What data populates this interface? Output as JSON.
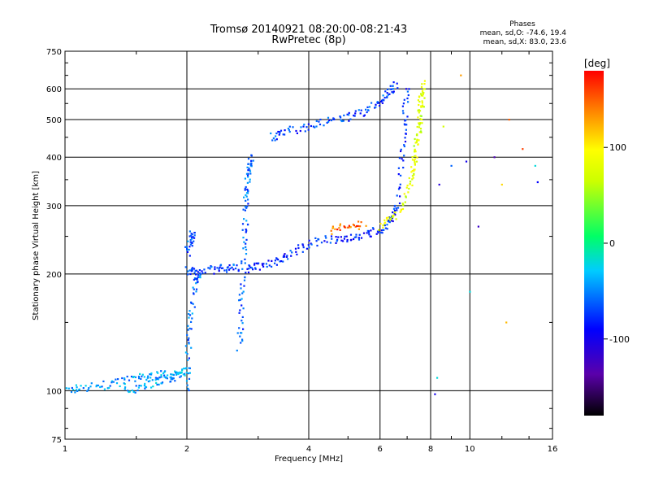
{
  "chart_data": {
    "type": "scatter",
    "title": "Tromsø 20140921 08:20:00-08:21:43",
    "subtitle": "RwPretec (8p)",
    "xlabel": "Frequency [MHz]",
    "ylabel": "Stationary phase Virtual Height [km]",
    "x_scale": "log",
    "y_scale": "log",
    "xlim": [
      1,
      16
    ],
    "ylim": [
      75,
      750
    ],
    "x_ticks": [
      1,
      2,
      4,
      6,
      8,
      10,
      16
    ],
    "y_ticks": [
      75,
      100,
      200,
      300,
      400,
      500,
      600,
      750
    ],
    "grid": true,
    "phases": {
      "title": "Phases",
      "line1": "mean, sd,O: -74.6, 19.4",
      "line2": "mean, sd,X:  83.0, 23.6"
    },
    "colorbar": {
      "label": "[deg]",
      "min": -180,
      "max": 180,
      "ticks": [
        100,
        0,
        -100
      ],
      "colormap": "rainbow"
    },
    "traces": [
      {
        "points": [
          [
            1.0,
            100
          ],
          [
            1.1,
            102
          ],
          [
            1.25,
            103
          ],
          [
            1.4,
            106
          ],
          [
            1.55,
            108
          ],
          [
            1.7,
            110
          ],
          [
            1.85,
            110
          ],
          [
            2.0,
            112
          ]
        ],
        "phase": -45
      },
      {
        "points": [
          [
            1.4,
            100
          ],
          [
            1.55,
            103
          ],
          [
            1.7,
            106
          ],
          [
            1.85,
            108
          ],
          [
            2.0,
            110
          ]
        ],
        "phase": -40
      },
      {
        "points": [
          [
            2.0,
            205
          ],
          [
            2.1,
            203
          ],
          [
            2.3,
            205
          ],
          [
            2.5,
            207
          ],
          [
            2.7,
            208
          ]
        ],
        "phase": -70
      },
      {
        "points": [
          [
            2.0,
            225
          ],
          [
            2.05,
            245
          ],
          [
            2.08,
            260
          ]
        ],
        "phase": -65
      },
      {
        "points": [
          [
            2.0,
            100
          ],
          [
            2.02,
            130
          ],
          [
            2.05,
            160
          ],
          [
            2.1,
            190
          ],
          [
            2.15,
            200
          ]
        ],
        "phase": -55
      },
      {
        "points": [
          [
            2.7,
            130
          ],
          [
            2.72,
            160
          ],
          [
            2.75,
            200
          ],
          [
            2.78,
            250
          ],
          [
            2.8,
            300
          ],
          [
            2.82,
            340
          ],
          [
            2.85,
            380
          ],
          [
            2.9,
            400
          ]
        ],
        "phase": -60
      },
      {
        "points": [
          [
            2.8,
            205
          ],
          [
            3.0,
            210
          ],
          [
            3.3,
            215
          ],
          [
            3.6,
            225
          ],
          [
            4.0,
            240
          ],
          [
            4.5,
            245
          ],
          [
            5.0,
            248
          ],
          [
            5.5,
            252
          ],
          [
            6.0,
            260
          ],
          [
            6.4,
            275
          ],
          [
            6.6,
            300
          ],
          [
            6.8,
            400
          ],
          [
            6.9,
            500
          ],
          [
            7.0,
            620
          ]
        ],
        "phase": -80
      },
      {
        "points": [
          [
            3.2,
            450
          ],
          [
            3.5,
            465
          ],
          [
            4.0,
            480
          ],
          [
            4.5,
            495
          ],
          [
            5.0,
            505
          ],
          [
            5.5,
            525
          ],
          [
            6.0,
            560
          ],
          [
            6.3,
            590
          ],
          [
            6.6,
            620
          ]
        ],
        "phase": -70
      },
      {
        "points": [
          [
            6.0,
            265
          ],
          [
            6.5,
            280
          ],
          [
            7.0,
            320
          ],
          [
            7.3,
            380
          ],
          [
            7.5,
            480
          ],
          [
            7.6,
            560
          ],
          [
            7.7,
            620
          ]
        ],
        "phase": 80
      },
      {
        "points": [
          [
            7.2,
            350
          ],
          [
            7.35,
            420
          ],
          [
            7.5,
            500
          ],
          [
            7.6,
            600
          ]
        ],
        "phase": 70
      },
      {
        "points": [
          [
            4.5,
            260
          ],
          [
            5.0,
            265
          ],
          [
            5.5,
            268
          ]
        ],
        "phase": 150
      }
    ],
    "scattered_points": [
      {
        "x": 8.2,
        "y": 98,
        "phase": -100
      },
      {
        "x": 8.3,
        "y": 108,
        "phase": -20
      },
      {
        "x": 8.4,
        "y": 340,
        "phase": -110
      },
      {
        "x": 8.6,
        "y": 480,
        "phase": 70
      },
      {
        "x": 9.0,
        "y": 380,
        "phase": -60
      },
      {
        "x": 9.5,
        "y": 650,
        "phase": 130
      },
      {
        "x": 9.8,
        "y": 390,
        "phase": -100
      },
      {
        "x": 10.0,
        "y": 180,
        "phase": -20
      },
      {
        "x": 10.5,
        "y": 265,
        "phase": -120
      },
      {
        "x": 11.5,
        "y": 400,
        "phase": -130
      },
      {
        "x": 12.0,
        "y": 340,
        "phase": 110
      },
      {
        "x": 12.3,
        "y": 150,
        "phase": 120
      },
      {
        "x": 12.5,
        "y": 500,
        "phase": 150
      },
      {
        "x": 13.5,
        "y": 420,
        "phase": 160
      },
      {
        "x": 14.5,
        "y": 380,
        "phase": -20
      },
      {
        "x": 14.7,
        "y": 345,
        "phase": -90
      }
    ]
  }
}
